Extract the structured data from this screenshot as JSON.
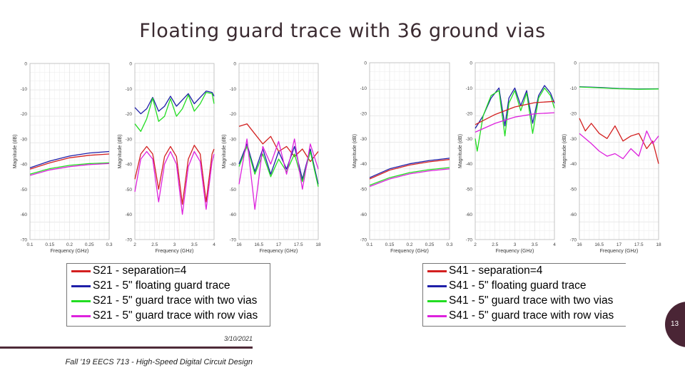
{
  "slide": {
    "title": "Floating guard trace with 36 ground vias",
    "date": "3/10/2021",
    "course": "Fall '19 EECS 713 - High-Speed Digital Circuit Design",
    "page_number": "13"
  },
  "colors": {
    "red": "#d32020",
    "blue": "#1f1fa8",
    "green": "#22dd22",
    "magenta": "#dd22dd",
    "badge": "#4a2535",
    "grid": "#e1e1e1"
  },
  "legends": [
    {
      "items": [
        {
          "label": "S21 - separation=4",
          "color": "#d32020"
        },
        {
          "label": "S21 - 5\" floating guard trace",
          "color": "#1f1fa8"
        },
        {
          "label": "S21 - 5\" guard trace with two vias",
          "color": "#22dd22"
        },
        {
          "label": "S21 - 5\" guard trace with row vias",
          "color": "#dd22dd"
        }
      ]
    },
    {
      "items": [
        {
          "label": "S41 - separation=4",
          "color": "#d32020"
        },
        {
          "label": "S41 - 5\" floating guard trace",
          "color": "#1f1fa8"
        },
        {
          "label": "S41 - 5\" guard trace with two vias",
          "color": "#22dd22"
        },
        {
          "label": "S41 - 5\" guard trace with row vias",
          "color": "#dd22dd"
        }
      ]
    }
  ],
  "chart_data": [
    {
      "type": "line",
      "xlabel": "Frequency (GHz)",
      "ylabel": "Magnitude (dB)",
      "xlim": [
        0.1,
        0.3
      ],
      "ylim": [
        -70,
        0
      ],
      "xticks": [
        "0.1",
        "0.15",
        "0.2",
        "0.25",
        "0.3"
      ],
      "yticks": [
        "0",
        "-10",
        "-20",
        "-30",
        "-40",
        "-50",
        "-60",
        "-70"
      ],
      "series": [
        {
          "color": "#d32020",
          "x": [
            0.1,
            0.15,
            0.2,
            0.25,
            0.3
          ],
          "y": [
            -42,
            -39.5,
            -37.5,
            -36.5,
            -36
          ]
        },
        {
          "color": "#1f1fa8",
          "x": [
            0.1,
            0.15,
            0.2,
            0.25,
            0.3
          ],
          "y": [
            -41.5,
            -38.8,
            -36.8,
            -35.6,
            -35
          ]
        },
        {
          "color": "#22dd22",
          "x": [
            0.1,
            0.15,
            0.2,
            0.25,
            0.3
          ],
          "y": [
            -44,
            -41.8,
            -40.5,
            -39.8,
            -39.5
          ]
        },
        {
          "color": "#dd22dd",
          "x": [
            0.1,
            0.15,
            0.2,
            0.25,
            0.3
          ],
          "y": [
            -44.5,
            -42.3,
            -41,
            -40.2,
            -39.8
          ]
        }
      ]
    },
    {
      "type": "line",
      "xlabel": "Frequency (GHz)",
      "ylabel": "Magnitude (dB)",
      "xlim": [
        2,
        4
      ],
      "ylim": [
        -70,
        0
      ],
      "xticks": [
        "2",
        "2.5",
        "3",
        "3.5",
        "4"
      ],
      "yticks": [
        "0",
        "-10",
        "-20",
        "-30",
        "-40",
        "-50",
        "-60",
        "-70"
      ],
      "series": [
        {
          "color": "#1f1fa8",
          "x": [
            2,
            2.15,
            2.3,
            2.45,
            2.6,
            2.75,
            2.9,
            3.05,
            3.2,
            3.35,
            3.5,
            3.65,
            3.8,
            3.95,
            4
          ],
          "y": [
            -17.5,
            -20,
            -18,
            -13.5,
            -19,
            -17,
            -13,
            -17,
            -14.5,
            -12,
            -16,
            -13.5,
            -11,
            -11.5,
            -13
          ]
        },
        {
          "color": "#22dd22",
          "x": [
            2,
            2.15,
            2.3,
            2.45,
            2.6,
            2.75,
            2.9,
            3.05,
            3.2,
            3.35,
            3.5,
            3.65,
            3.8,
            3.95,
            4
          ],
          "y": [
            -24,
            -27,
            -22,
            -13.8,
            -23,
            -21,
            -14,
            -21,
            -18,
            -12.5,
            -19,
            -16,
            -11.5,
            -12,
            -16
          ]
        },
        {
          "color": "#d32020",
          "x": [
            2,
            2.15,
            2.3,
            2.45,
            2.6,
            2.75,
            2.9,
            3.05,
            3.2,
            3.35,
            3.5,
            3.65,
            3.8,
            3.95,
            4
          ],
          "y": [
            -46,
            -36,
            -33,
            -36,
            -50,
            -37,
            -33,
            -37,
            -56,
            -38,
            -32.5,
            -36,
            -55,
            -36,
            -34
          ]
        },
        {
          "color": "#dd22dd",
          "x": [
            2,
            2.15,
            2.3,
            2.45,
            2.6,
            2.75,
            2.9,
            3.05,
            3.2,
            3.35,
            3.5,
            3.65,
            3.8,
            3.95,
            4
          ],
          "y": [
            -51,
            -38,
            -35,
            -38,
            -55,
            -40,
            -35,
            -40,
            -60,
            -41,
            -35,
            -39,
            -58,
            -39,
            -36
          ]
        }
      ]
    },
    {
      "type": "line",
      "xlabel": "Frequency (GHz)",
      "ylabel": "Magnitude (dB)",
      "xlim": [
        16,
        18
      ],
      "ylim": [
        -70,
        0
      ],
      "xticks": [
        "16",
        "16.5",
        "17",
        "17.5",
        "18"
      ],
      "yticks": [
        "0",
        "-10",
        "-20",
        "-30",
        "-40",
        "-50",
        "-60",
        "-70"
      ],
      "series": [
        {
          "color": "#d32020",
          "x": [
            16,
            16.2,
            16.4,
            16.6,
            16.8,
            17,
            17.2,
            17.4,
            17.6,
            17.8,
            18
          ],
          "y": [
            -25,
            -24,
            -28,
            -32,
            -29,
            -35,
            -33,
            -37,
            -34,
            -39,
            -35
          ]
        },
        {
          "color": "#1f1fa8",
          "x": [
            16,
            16.2,
            16.4,
            16.6,
            16.8,
            17,
            17.2,
            17.4,
            17.6,
            17.8,
            18
          ],
          "y": [
            -40,
            -32,
            -43,
            -34,
            -44,
            -35,
            -42,
            -33,
            -46,
            -34,
            -48
          ]
        },
        {
          "color": "#22dd22",
          "x": [
            16,
            16.2,
            16.4,
            16.6,
            16.8,
            17,
            17.2,
            17.4,
            17.6,
            17.8,
            18
          ],
          "y": [
            -41,
            -33,
            -44,
            -36,
            -45,
            -38,
            -43,
            -36,
            -47,
            -35,
            -49
          ]
        },
        {
          "color": "#dd22dd",
          "x": [
            16,
            16.2,
            16.4,
            16.6,
            16.8,
            17,
            17.2,
            17.4,
            17.6,
            17.8,
            18
          ],
          "y": [
            -48,
            -30,
            -58,
            -33,
            -40,
            -31,
            -44,
            -30,
            -50,
            -32,
            -42
          ]
        }
      ]
    },
    {
      "type": "line",
      "xlabel": "Frequency (GHz)",
      "ylabel": "Magnitude (dB)",
      "xlim": [
        0.1,
        0.3
      ],
      "ylim": [
        -70,
        0
      ],
      "xticks": [
        "0.1",
        "0.15",
        "0.2",
        "0.25",
        "0.3"
      ],
      "yticks": [
        "0",
        "-10",
        "-20",
        "-30",
        "-40",
        "-50",
        "-60",
        "-70"
      ],
      "series": [
        {
          "color": "#d32020",
          "x": [
            0.1,
            0.15,
            0.2,
            0.25,
            0.3
          ],
          "y": [
            -46,
            -42.5,
            -40.5,
            -39.2,
            -38.3
          ]
        },
        {
          "color": "#1f1fa8",
          "x": [
            0.1,
            0.15,
            0.2,
            0.25,
            0.3
          ],
          "y": [
            -45.5,
            -42,
            -40,
            -38.7,
            -37.8
          ]
        },
        {
          "color": "#22dd22",
          "x": [
            0.1,
            0.15,
            0.2,
            0.25,
            0.3
          ],
          "y": [
            -48.5,
            -45.5,
            -43.5,
            -42.3,
            -41.5
          ]
        },
        {
          "color": "#dd22dd",
          "x": [
            0.1,
            0.15,
            0.2,
            0.25,
            0.3
          ],
          "y": [
            -49,
            -46,
            -44,
            -42.8,
            -42
          ]
        }
      ]
    },
    {
      "type": "line",
      "xlabel": "Frequency (GHz)",
      "ylabel": "Magnitude (dB)",
      "xlim": [
        2,
        4
      ],
      "ylim": [
        -70,
        0
      ],
      "xticks": [
        "2",
        "2.5",
        "3",
        "3.5",
        "4"
      ],
      "yticks": [
        "0",
        "-10",
        "-20",
        "-30",
        "-40",
        "-50",
        "-60",
        "-70"
      ],
      "series": [
        {
          "color": "#1f1fa8",
          "x": [
            2,
            2.2,
            2.4,
            2.6,
            2.75,
            2.85,
            3,
            3.15,
            3.3,
            3.45,
            3.6,
            3.75,
            3.9,
            4
          ],
          "y": [
            -26,
            -21,
            -14,
            -10,
            -25,
            -14,
            -10,
            -17,
            -11,
            -24,
            -13,
            -9,
            -12,
            -16
          ]
        },
        {
          "color": "#22dd22",
          "x": [
            2,
            2.05,
            2.2,
            2.4,
            2.6,
            2.75,
            2.85,
            3,
            3.15,
            3.3,
            3.45,
            3.6,
            3.75,
            3.9,
            4
          ],
          "y": [
            -30,
            -35,
            -21,
            -13,
            -11,
            -29,
            -16,
            -11,
            -19,
            -12,
            -28,
            -14,
            -10,
            -13,
            -18
          ]
        },
        {
          "color": "#d32020",
          "x": [
            2,
            2.5,
            3,
            3.5,
            4
          ],
          "y": [
            -24.5,
            -20.5,
            -17.5,
            -15.8,
            -15.3
          ]
        },
        {
          "color": "#dd22dd",
          "x": [
            2,
            2.5,
            3,
            3.5,
            4
          ],
          "y": [
            -27.5,
            -24,
            -21.5,
            -20.2,
            -19.8
          ]
        }
      ]
    },
    {
      "type": "line",
      "xlabel": "Frequency (GHz)",
      "ylabel": "Magnitude (dB)",
      "xlim": [
        16,
        18
      ],
      "ylim": [
        -70,
        0
      ],
      "xticks": [
        "16",
        "16.5",
        "17",
        "17.5",
        "18"
      ],
      "yticks": [
        "0",
        "-10",
        "-20",
        "-30",
        "-40",
        "-50",
        "-60",
        "-70"
      ],
      "series": [
        {
          "color": "#1f1fa8",
          "x": [
            16,
            16.5,
            17,
            17.5,
            18
          ],
          "y": [
            -9.5,
            -9.8,
            -10.2,
            -10.4,
            -10.3
          ]
        },
        {
          "color": "#22dd22",
          "x": [
            16,
            16.5,
            17,
            17.5,
            18
          ],
          "y": [
            -9.6,
            -9.9,
            -10.3,
            -10.5,
            -10.4
          ]
        },
        {
          "color": "#d32020",
          "x": [
            16,
            16.15,
            16.3,
            16.5,
            16.7,
            16.9,
            17.1,
            17.3,
            17.5,
            17.7,
            17.85,
            18
          ],
          "y": [
            -22,
            -27,
            -24,
            -28,
            -30,
            -25,
            -31,
            -29,
            -28,
            -34,
            -31,
            -40
          ]
        },
        {
          "color": "#dd22dd",
          "x": [
            16,
            16.15,
            16.3,
            16.5,
            16.7,
            16.9,
            17.1,
            17.3,
            17.5,
            17.7,
            17.85,
            18
          ],
          "y": [
            -28,
            -30,
            -32,
            -35,
            -37,
            -36,
            -38,
            -34,
            -37,
            -27,
            -32,
            -29
          ]
        }
      ]
    }
  ]
}
